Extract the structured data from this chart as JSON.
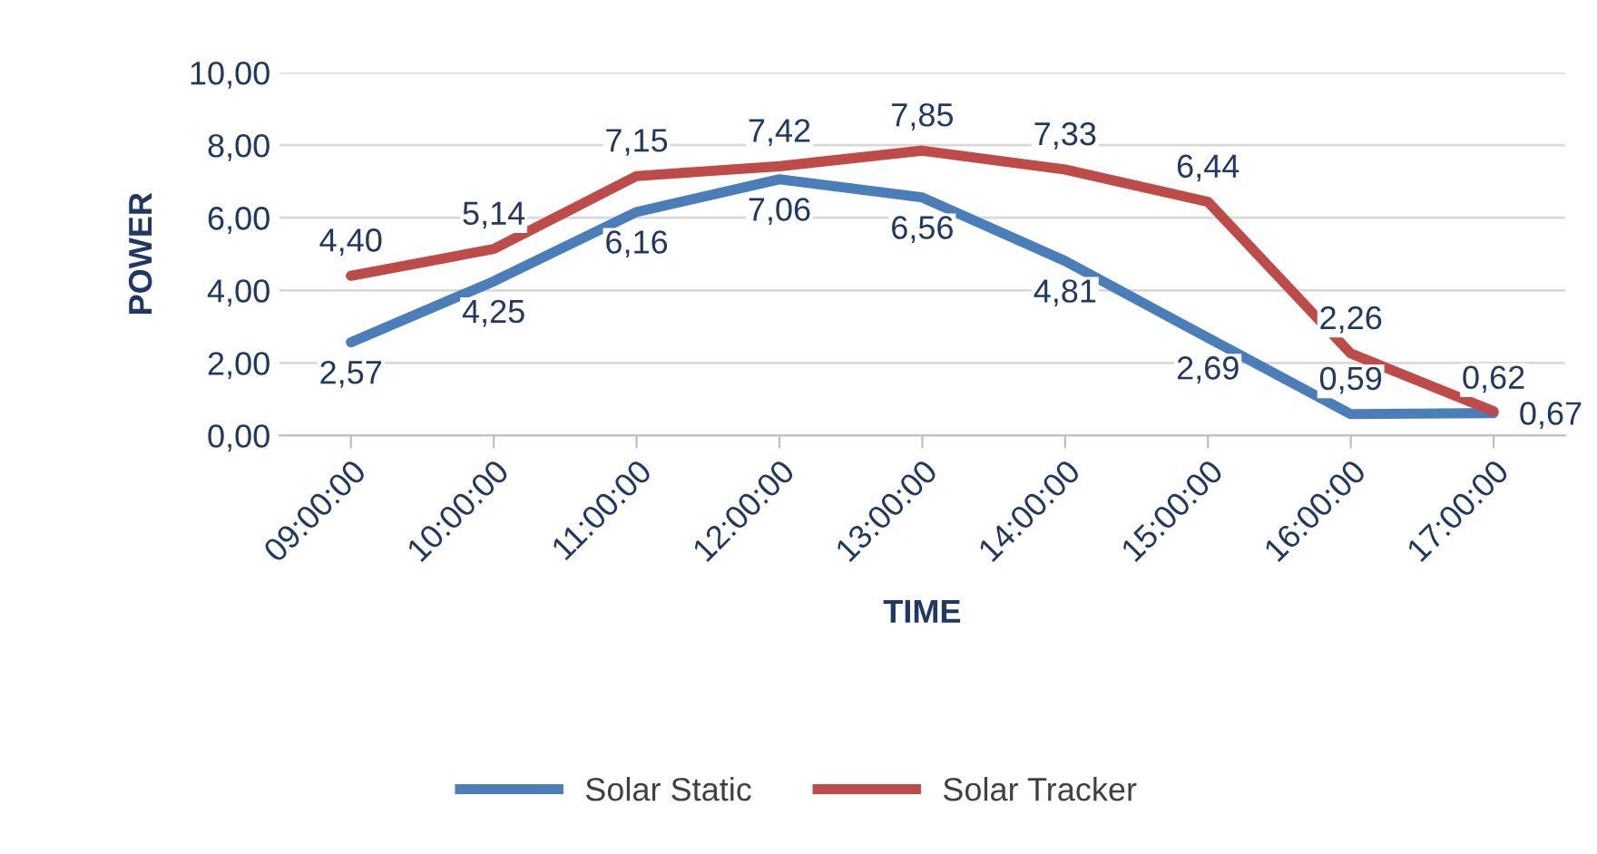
{
  "chart_data": {
    "type": "line",
    "xlabel": "TIME",
    "ylabel": "POWER",
    "categories": [
      "09:00:00",
      "10:00:00",
      "11:00:00",
      "12:00:00",
      "13:00:00",
      "14:00:00",
      "15:00:00",
      "16:00:00",
      "17:00:00"
    ],
    "series": [
      {
        "name": "Solar Static",
        "color": "#4a7ebb",
        "values": [
          2.57,
          4.25,
          6.16,
          7.06,
          6.56,
          4.81,
          2.69,
          0.59,
          0.62
        ],
        "value_labels": [
          "2,57",
          "4,25",
          "6,16",
          "7,06",
          "6,56",
          "4,81",
          "2,69",
          "0,59",
          "0,62"
        ]
      },
      {
        "name": "Solar Tracker",
        "color": "#be4b48",
        "values": [
          4.4,
          5.14,
          7.15,
          7.42,
          7.85,
          7.33,
          6.44,
          2.26,
          0.67
        ],
        "value_labels": [
          "4,40",
          "5,14",
          "7,15",
          "7,42",
          "7,85",
          "7,33",
          "6,44",
          "2,26",
          "0,67"
        ]
      }
    ],
    "ylim": [
      0,
      10
    ],
    "yticks": [
      {
        "value": 0,
        "label": "0,00"
      },
      {
        "value": 2,
        "label": "2,00"
      },
      {
        "value": 4,
        "label": "4,00"
      },
      {
        "value": 6,
        "label": "6,00"
      },
      {
        "value": 8,
        "label": "8,00"
      },
      {
        "value": 10,
        "label": "10,00"
      }
    ],
    "grid": "y",
    "legend": "bottom",
    "marker": "none",
    "line_style": "solid"
  }
}
